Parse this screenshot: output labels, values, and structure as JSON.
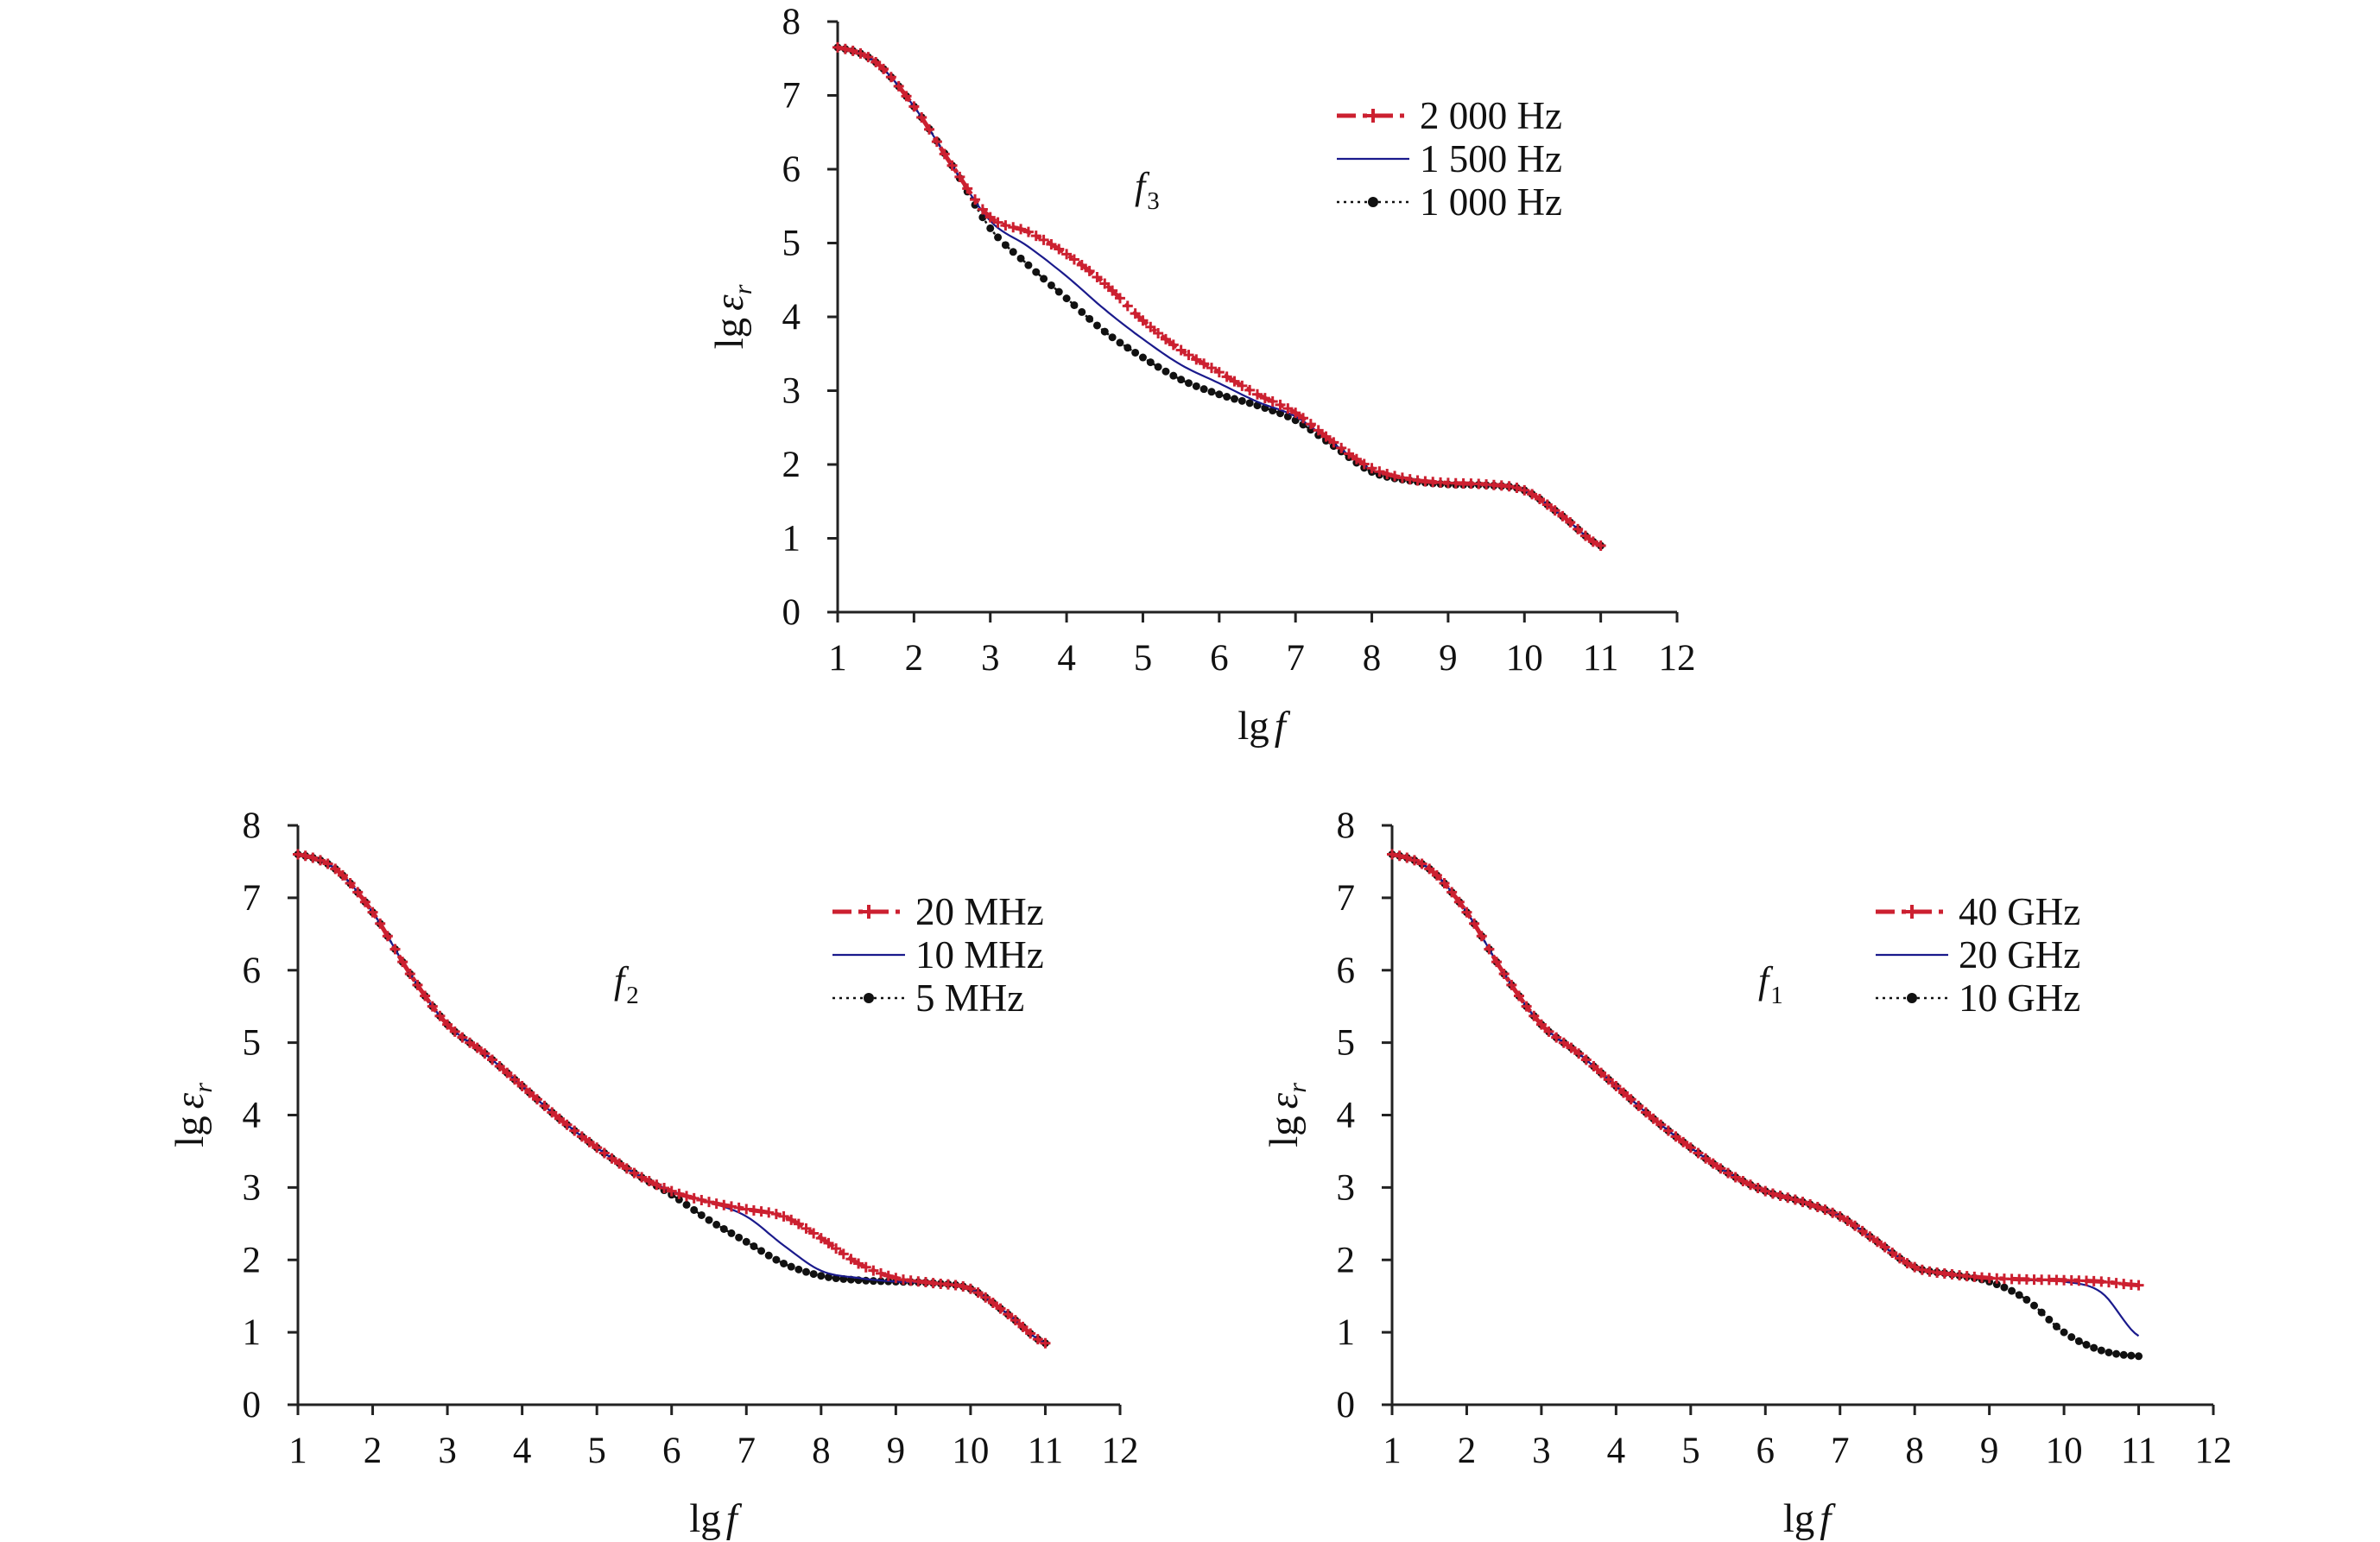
{
  "colors": {
    "red": "#cc2030",
    "blue": "#1a1a8c",
    "black": "#111111",
    "axis": "#222222"
  },
  "chart_data": [
    {
      "type": "line",
      "id": "top",
      "annotation": {
        "main": "f",
        "sub": "3"
      },
      "xlabel": {
        "main": "lg",
        "italic": "f"
      },
      "ylabel": {
        "main": "lg",
        "italic": "ε",
        "sub": "r"
      },
      "xlim": [
        1,
        12
      ],
      "ylim": [
        0,
        8
      ],
      "xticks": [
        "1",
        "2",
        "3",
        "4",
        "5",
        "6",
        "7",
        "8",
        "9",
        "10",
        "11",
        "12"
      ],
      "yticks": [
        "0",
        "1",
        "2",
        "3",
        "4",
        "5",
        "6",
        "7",
        "8"
      ],
      "legend_position": "top-right",
      "series": [
        {
          "name": "2 000 Hz",
          "style": "red-dashdot-plus",
          "x": [
            1,
            1.5,
            2,
            2.5,
            3,
            3.5,
            4,
            4.5,
            5,
            5.5,
            6,
            6.5,
            7,
            7.5,
            8,
            8.5,
            9,
            9.5,
            10,
            10.5,
            11
          ],
          "y": [
            7.65,
            7.45,
            6.85,
            6.05,
            5.35,
            5.15,
            4.85,
            4.45,
            3.95,
            3.55,
            3.25,
            2.95,
            2.7,
            2.3,
            1.95,
            1.8,
            1.75,
            1.73,
            1.65,
            1.3,
            0.9
          ]
        },
        {
          "name": "1 500 Hz",
          "style": "blue-solid",
          "x": [
            1,
            1.5,
            2,
            2.5,
            3,
            3.5,
            4,
            4.5,
            5,
            5.5,
            6,
            6.5,
            7,
            7.5,
            8,
            8.5,
            9,
            9.5,
            10,
            10.5,
            11
          ],
          "y": [
            7.65,
            7.45,
            6.85,
            6.05,
            5.3,
            4.95,
            4.55,
            4.1,
            3.7,
            3.35,
            3.1,
            2.85,
            2.65,
            2.28,
            1.93,
            1.8,
            1.75,
            1.72,
            1.65,
            1.3,
            0.9
          ]
        },
        {
          "name": "1 000 Hz",
          "style": "black-dotted-dots",
          "x": [
            1,
            1.5,
            2,
            2.5,
            3,
            3.5,
            4,
            4.5,
            5,
            5.5,
            6,
            6.5,
            7,
            7.5,
            8,
            8.5,
            9,
            9.5,
            10,
            10.5,
            11
          ],
          "y": [
            7.65,
            7.45,
            6.85,
            6.05,
            5.2,
            4.7,
            4.25,
            3.8,
            3.45,
            3.15,
            2.95,
            2.8,
            2.6,
            2.25,
            1.9,
            1.78,
            1.73,
            1.72,
            1.65,
            1.3,
            0.9
          ]
        }
      ]
    },
    {
      "type": "line",
      "id": "bottom-left",
      "annotation": {
        "main": "f",
        "sub": "2"
      },
      "xlabel": {
        "main": "lg",
        "italic": "f"
      },
      "ylabel": {
        "main": "lg",
        "italic": "ε",
        "sub": "r"
      },
      "xlim": [
        1,
        12
      ],
      "ylim": [
        0,
        8
      ],
      "xticks": [
        "1",
        "2",
        "3",
        "4",
        "5",
        "6",
        "7",
        "8",
        "9",
        "10",
        "11",
        "12"
      ],
      "yticks": [
        "0",
        "1",
        "2",
        "3",
        "4",
        "5",
        "6",
        "7",
        "8"
      ],
      "legend_position": "top-right",
      "series": [
        {
          "name": "20 MHz",
          "style": "red-dashdot-plus",
          "x": [
            1,
            1.5,
            2,
            2.5,
            3,
            3.5,
            4,
            4.5,
            5,
            5.5,
            6,
            6.5,
            7,
            7.5,
            8,
            8.5,
            9,
            9.5,
            10,
            10.5,
            11
          ],
          "y": [
            7.6,
            7.4,
            6.8,
            5.95,
            5.25,
            4.85,
            4.4,
            3.95,
            3.55,
            3.2,
            2.95,
            2.8,
            2.7,
            2.6,
            2.3,
            1.95,
            1.75,
            1.68,
            1.6,
            1.25,
            0.85
          ]
        },
        {
          "name": "10 MHz",
          "style": "blue-solid",
          "x": [
            1,
            1.5,
            2,
            2.5,
            3,
            3.5,
            4,
            4.5,
            5,
            5.5,
            6,
            6.5,
            7,
            7.5,
            8,
            8.5,
            9,
            9.5,
            10,
            10.5,
            11
          ],
          "y": [
            7.6,
            7.4,
            6.8,
            5.95,
            5.25,
            4.85,
            4.4,
            3.95,
            3.55,
            3.2,
            2.95,
            2.8,
            2.6,
            2.2,
            1.85,
            1.75,
            1.7,
            1.68,
            1.6,
            1.25,
            0.85
          ]
        },
        {
          "name": "5 MHz",
          "style": "black-dotted-dots",
          "x": [
            1,
            1.5,
            2,
            2.5,
            3,
            3.5,
            4,
            4.5,
            5,
            5.5,
            6,
            6.5,
            7,
            7.5,
            8,
            8.5,
            9,
            9.5,
            10,
            10.5,
            11
          ],
          "y": [
            7.6,
            7.4,
            6.8,
            5.95,
            5.25,
            4.85,
            4.4,
            3.95,
            3.55,
            3.2,
            2.9,
            2.55,
            2.25,
            1.95,
            1.78,
            1.72,
            1.7,
            1.68,
            1.6,
            1.25,
            0.85
          ]
        }
      ]
    },
    {
      "type": "line",
      "id": "bottom-right",
      "annotation": {
        "main": "f",
        "sub": "1"
      },
      "xlabel": {
        "main": "lg",
        "italic": "f"
      },
      "ylabel": {
        "main": "lg",
        "italic": "ε",
        "sub": "r"
      },
      "xlim": [
        1,
        12
      ],
      "ylim": [
        0,
        8
      ],
      "xticks": [
        "1",
        "2",
        "3",
        "4",
        "5",
        "6",
        "7",
        "8",
        "9",
        "10",
        "11",
        "12"
      ],
      "yticks": [
        "0",
        "1",
        "2",
        "3",
        "4",
        "5",
        "6",
        "7",
        "8"
      ],
      "legend_position": "top-right",
      "series": [
        {
          "name": "40 GHz",
          "style": "red-dashdot-plus",
          "x": [
            1,
            1.5,
            2,
            2.5,
            3,
            3.5,
            4,
            4.5,
            5,
            5.5,
            6,
            6.5,
            7,
            7.5,
            8,
            8.5,
            9,
            9.5,
            10,
            10.5,
            11
          ],
          "y": [
            7.6,
            7.4,
            6.8,
            5.95,
            5.25,
            4.85,
            4.4,
            3.95,
            3.55,
            3.2,
            2.95,
            2.8,
            2.6,
            2.25,
            1.9,
            1.8,
            1.75,
            1.73,
            1.72,
            1.7,
            1.65
          ]
        },
        {
          "name": "20 GHz",
          "style": "blue-solid",
          "x": [
            1,
            1.5,
            2,
            2.5,
            3,
            3.5,
            4,
            4.5,
            5,
            5.5,
            6,
            6.5,
            7,
            7.5,
            8,
            8.5,
            9,
            9.5,
            10,
            10.5,
            11
          ],
          "y": [
            7.6,
            7.4,
            6.8,
            5.95,
            5.25,
            4.85,
            4.4,
            3.95,
            3.55,
            3.2,
            2.95,
            2.8,
            2.6,
            2.25,
            1.9,
            1.8,
            1.75,
            1.72,
            1.7,
            1.55,
            0.95
          ]
        },
        {
          "name": "10 GHz",
          "style": "black-dotted-dots",
          "x": [
            1,
            1.5,
            2,
            2.5,
            3,
            3.5,
            4,
            4.5,
            5,
            5.5,
            6,
            6.5,
            7,
            7.5,
            8,
            8.5,
            9,
            9.5,
            10,
            10.5,
            11
          ],
          "y": [
            7.6,
            7.4,
            6.8,
            5.95,
            5.25,
            4.85,
            4.4,
            3.95,
            3.55,
            3.2,
            2.95,
            2.8,
            2.6,
            2.25,
            1.9,
            1.8,
            1.7,
            1.45,
            1.0,
            0.75,
            0.67
          ]
        }
      ]
    }
  ]
}
